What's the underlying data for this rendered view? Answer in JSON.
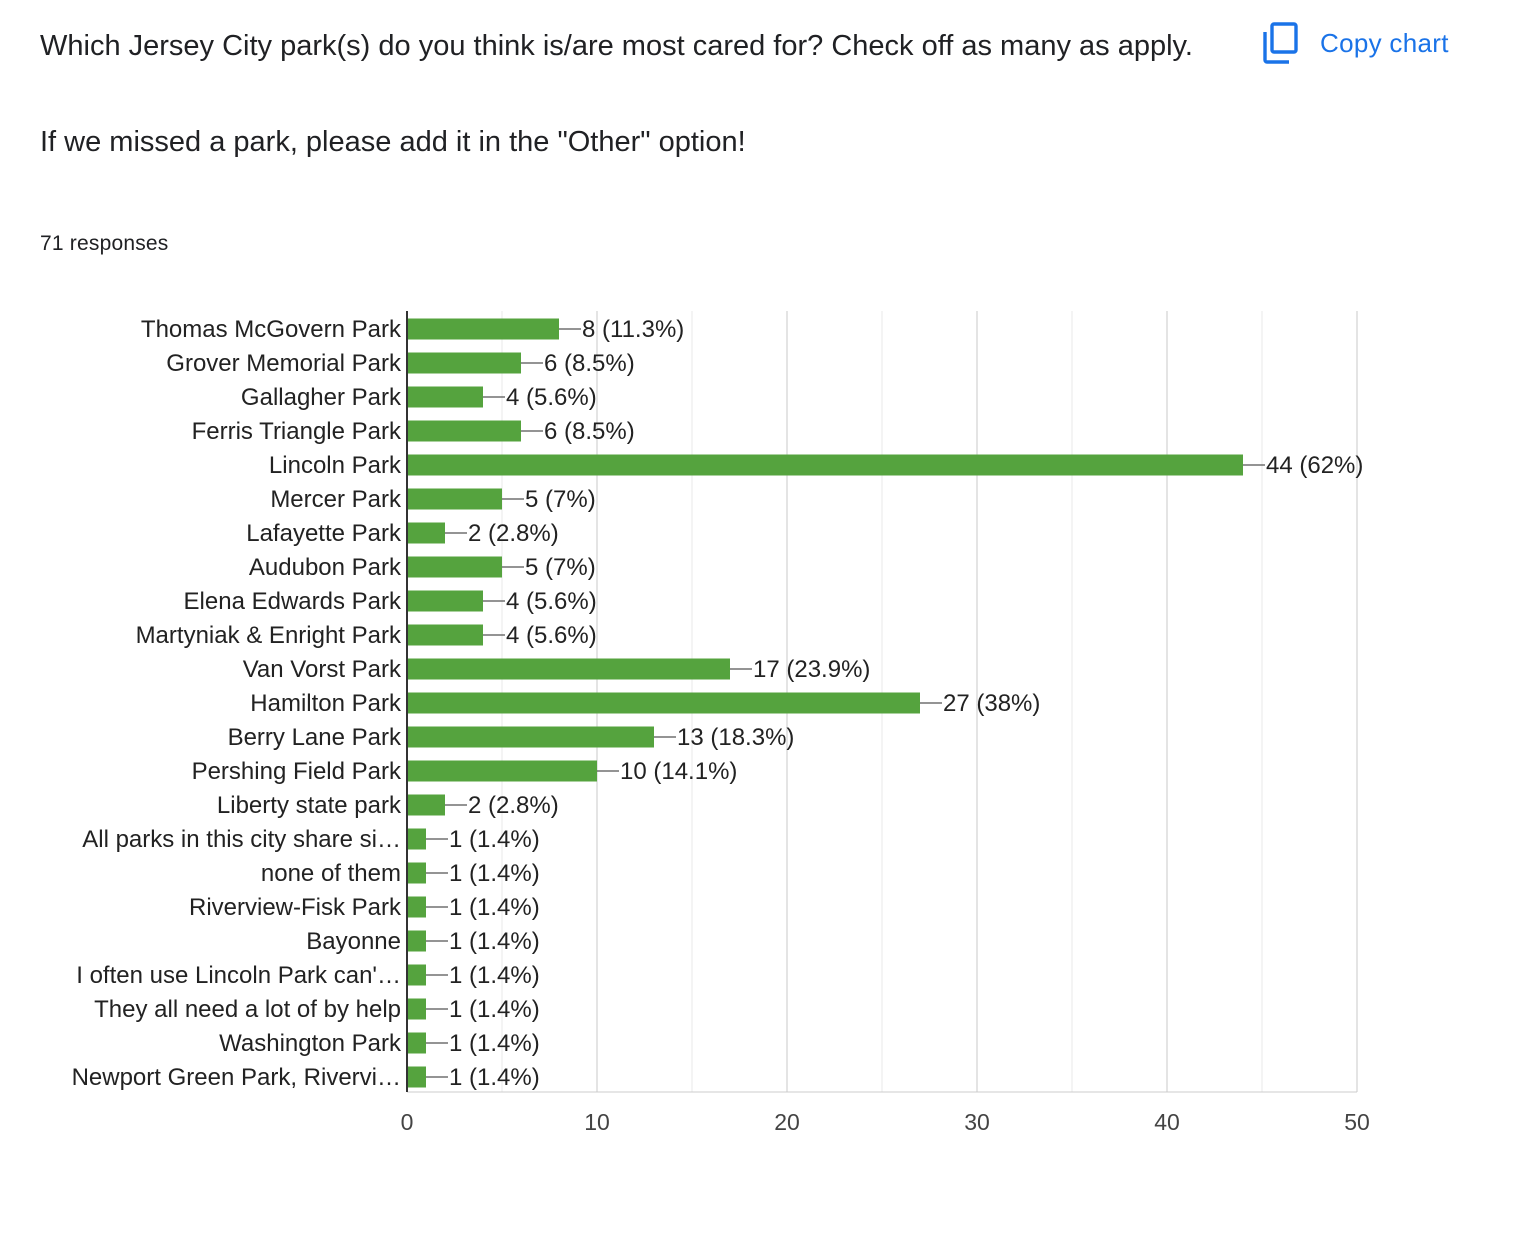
{
  "question": {
    "title": "Which Jersey City park(s) do you think is/are most cared for? Check off as many as apply.\n\nIf we missed a park, please add it in the \"Other\" option!",
    "responses": "71 responses"
  },
  "toolbar": {
    "copy_label": "Copy chart",
    "copy_icon": "copy-icon"
  },
  "colors": {
    "bar": "#55a33e",
    "gridline": "#e8e8e8",
    "axis": "#333333",
    "link": "#1a73e8"
  },
  "chart_data": {
    "type": "bar",
    "orientation": "horizontal",
    "categories": [
      "Thomas McGovern Park",
      "Grover Memorial Park",
      "Gallagher Park",
      "Ferris Triangle Park",
      "Lincoln Park",
      "Mercer Park",
      "Lafayette Park",
      "Audubon Park",
      "Elena Edwards Park",
      "Martyniak & Enright Park",
      "Van Vorst Park",
      "Hamilton Park",
      "Berry Lane Park",
      "Pershing Field Park",
      "Liberty state park",
      "All parks in this city share si…",
      "none of them",
      "Riverview-Fisk Park",
      "Bayonne",
      "I often use Lincoln Park can'…",
      "They all need a lot of by help",
      "Washington Park",
      "Newport Green Park, Rivervi…"
    ],
    "values": [
      8,
      6,
      4,
      6,
      44,
      5,
      2,
      5,
      4,
      4,
      17,
      27,
      13,
      10,
      2,
      1,
      1,
      1,
      1,
      1,
      1,
      1,
      1
    ],
    "data_labels": [
      "8 (11.3%)",
      "6 (8.5%)",
      "4 (5.6%)",
      "6 (8.5%)",
      "44 (62%)",
      "5 (7%)",
      "2 (2.8%)",
      "5 (7%)",
      "4 (5.6%)",
      "4 (5.6%)",
      "17 (23.9%)",
      "27 (38%)",
      "13 (18.3%)",
      "10 (14.1%)",
      "2 (2.8%)",
      "1 (1.4%)",
      "1 (1.4%)",
      "1 (1.4%)",
      "1 (1.4%)",
      "1 (1.4%)",
      "1 (1.4%)",
      "1 (1.4%)",
      "1 (1.4%)"
    ],
    "xlim": [
      0,
      50
    ],
    "major_ticks": [
      0,
      10,
      20,
      30,
      40,
      50
    ],
    "tick_labels": [
      "0",
      "10",
      "20",
      "30",
      "40",
      "50"
    ],
    "minor_gridlines": [
      5,
      15,
      25,
      35,
      45
    ],
    "grid": true,
    "title": "",
    "xlabel": "",
    "ylabel": ""
  }
}
